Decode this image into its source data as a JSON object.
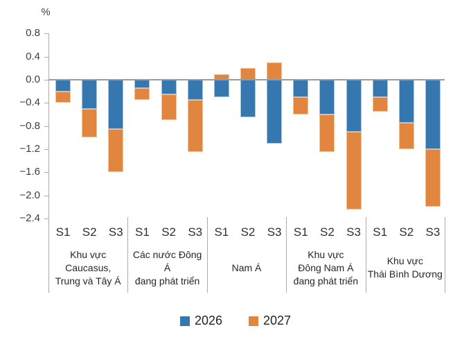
{
  "chart_data": {
    "type": "bar",
    "stacked": true,
    "orientation": "vertical",
    "unit_label": "%",
    "grid": "off",
    "legend_position": "bottom-center",
    "y_axis": {
      "min": -2.4,
      "max": 0.8,
      "tick_step": 0.4,
      "tick_values": [
        0.8,
        0.4,
        0.0,
        -0.4,
        -0.8,
        -1.2,
        -1.6,
        -2.0,
        -2.4
      ],
      "tick_labels": [
        "0.8",
        "0.4",
        "0.0",
        "−0.4",
        "−0.8",
        "−1.2",
        "−1.6",
        "−2.0",
        "−2.4"
      ]
    },
    "scenarios": [
      "S1",
      "S2",
      "S3"
    ],
    "groups": [
      {
        "name": "Khu vực Caucasus, Trung và Tây Á",
        "label_lines": [
          "Khu vực",
          "Caucasus,",
          "Trung và Tây Á"
        ]
      },
      {
        "name": "Các nước Đông Á đang phát triển",
        "label_lines": [
          "Các nước Đông Á",
          "đang phát triển"
        ]
      },
      {
        "name": "Nam Á",
        "label_lines": [
          "Nam Á"
        ]
      },
      {
        "name": "Khu vực Đông Nam Á đang phát triển",
        "label_lines": [
          "Khu vực",
          "Đông Nam Á",
          "đang phát triển"
        ]
      },
      {
        "name": "Khu vực Thái Bình Dương",
        "label_lines": [
          "Khu vực",
          "Thái Bình Dương"
        ]
      }
    ],
    "series": [
      {
        "name": "2026",
        "color": "#3577ae",
        "edge_color": "#a3c4e0",
        "values_by_group": [
          [
            -0.2,
            -0.5,
            -0.85
          ],
          [
            -0.15,
            -0.25,
            -0.35
          ],
          [
            -0.3,
            -0.65,
            -1.1
          ],
          [
            -0.3,
            -0.6,
            -0.9
          ],
          [
            -0.3,
            -0.75,
            -1.2
          ]
        ]
      },
      {
        "name": "2027",
        "color": "#e2853f",
        "edge_color": "#f3c297",
        "values_by_group": [
          [
            -0.2,
            -0.5,
            -0.75
          ],
          [
            -0.2,
            -0.45,
            -0.9
          ],
          [
            0.1,
            0.2,
            0.3
          ],
          [
            -0.3,
            -0.65,
            -1.35
          ],
          [
            -0.25,
            -0.45,
            -1.0
          ]
        ]
      }
    ],
    "legend": [
      {
        "label": "2026",
        "color": "#3577ae"
      },
      {
        "label": "2027",
        "color": "#e2853f"
      }
    ]
  }
}
